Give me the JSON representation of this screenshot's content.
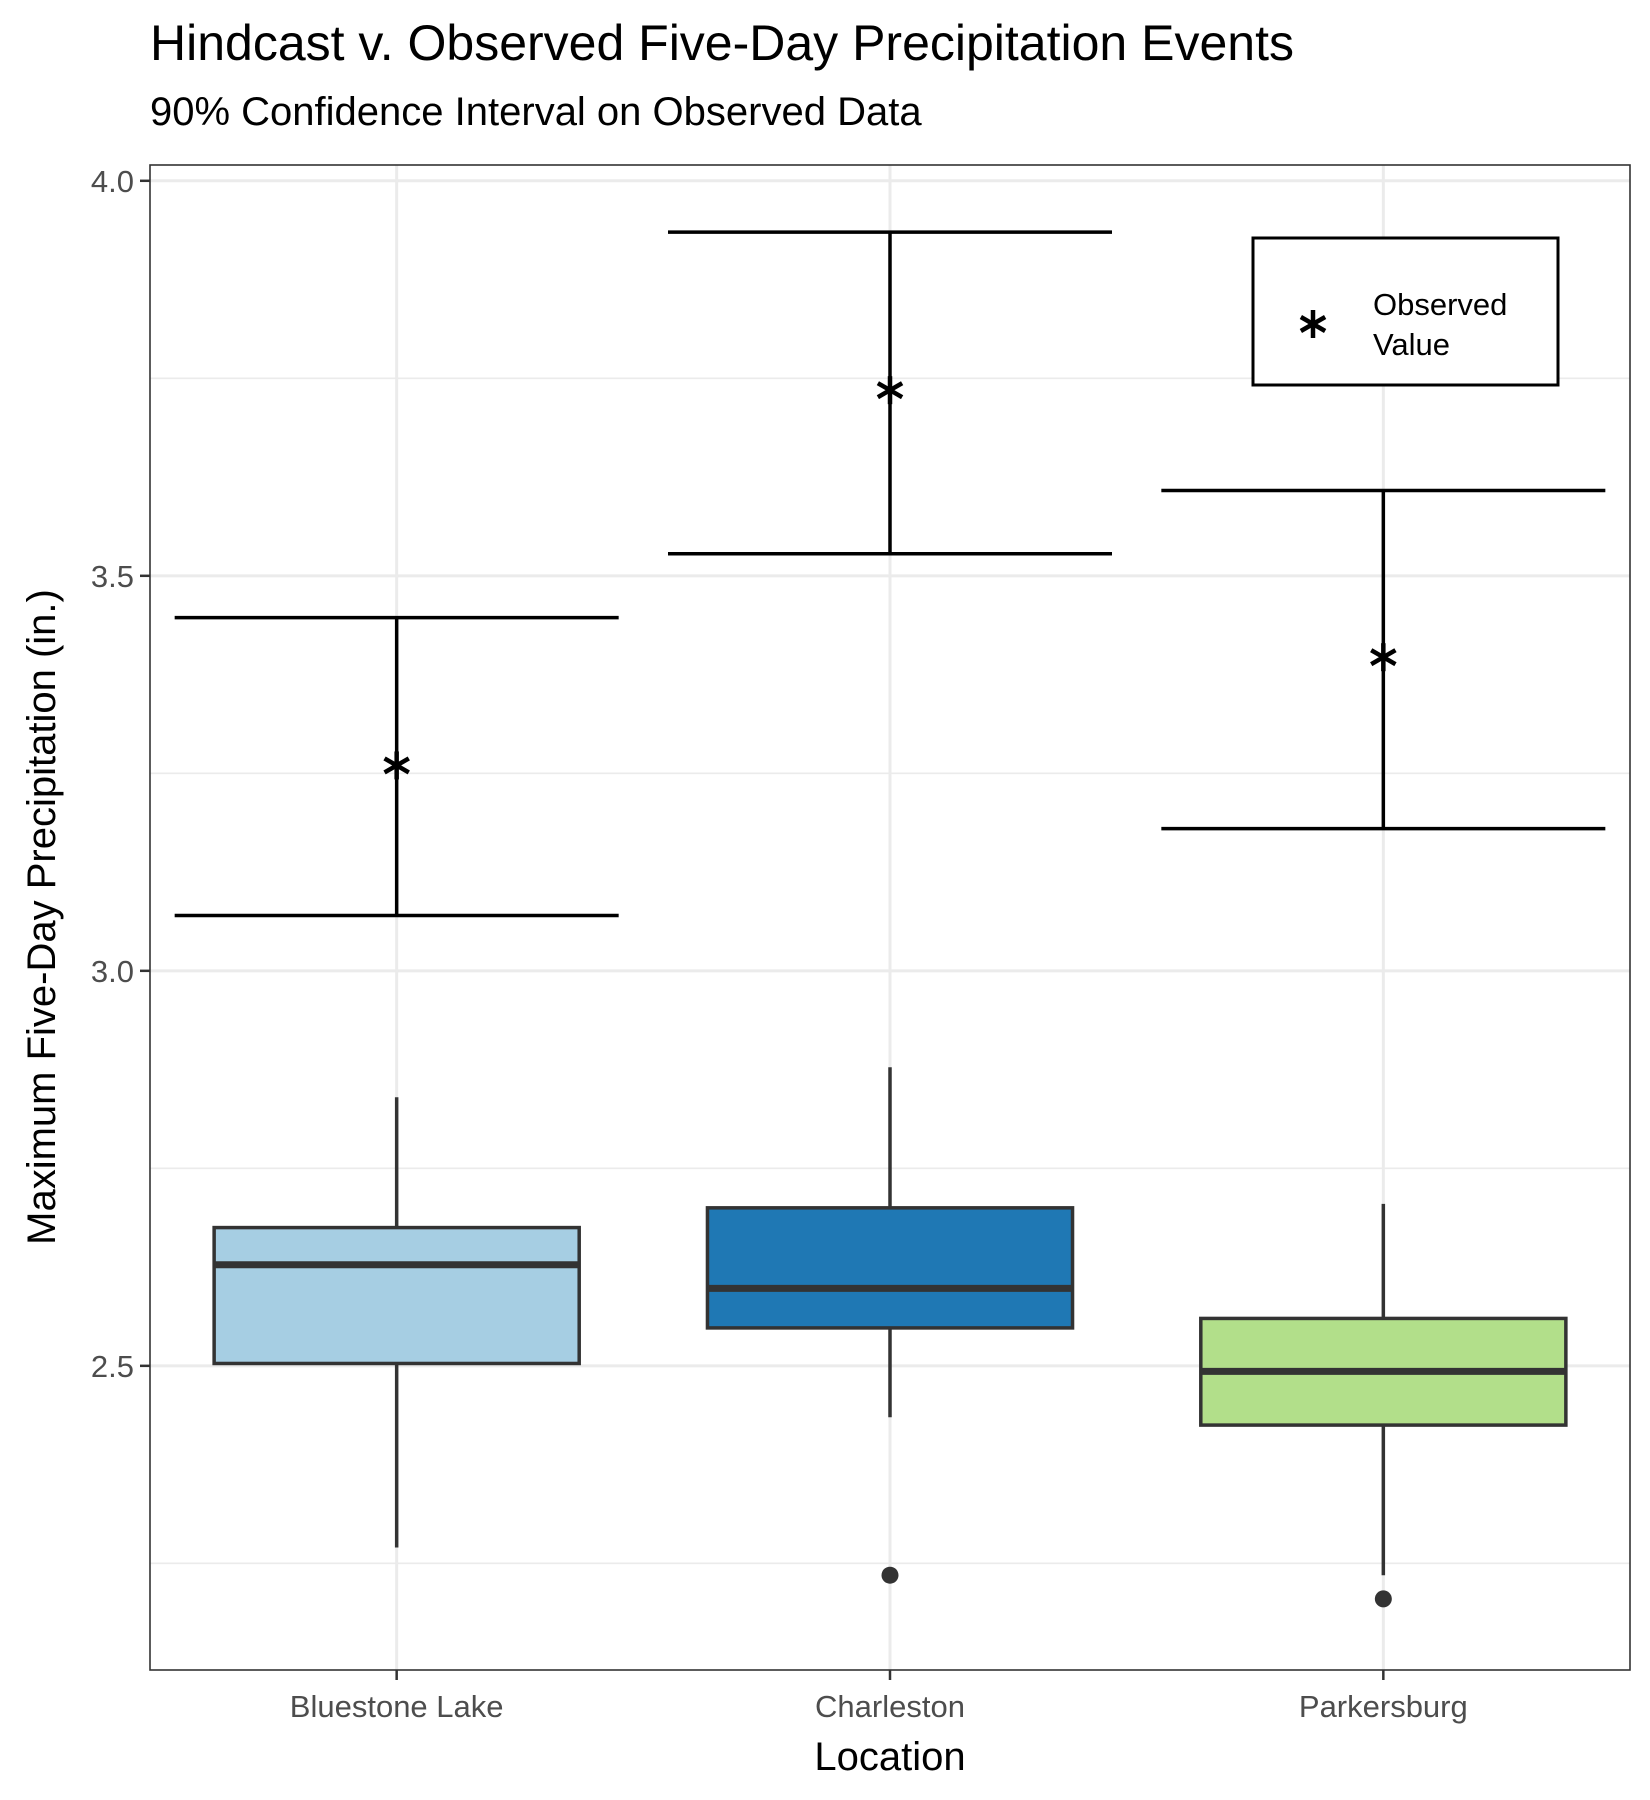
{
  "chart_data": {
    "type": "box",
    "title": "Hindcast v. Observed Five-Day Precipitation Events",
    "subtitle": "90% Confidence Interval on Observed Data",
    "xlabel": "Location",
    "ylabel": "Maximum Five-Day Precipitation (in.)",
    "categories": [
      "Bluestone Lake",
      "Charleston",
      "Parkersburg"
    ],
    "ylim": [
      2.115,
      4.02
    ],
    "yticks": [
      "2.5",
      "3.0",
      "3.5",
      "4.0"
    ],
    "ytick_values": [
      2.5,
      3.0,
      3.5,
      4.0
    ],
    "ygrid_minor": [
      2.25,
      2.75,
      3.25,
      3.75
    ],
    "grid": true,
    "boxes": [
      {
        "category": "Bluestone Lake",
        "whisker_low": 2.27,
        "q1": 2.503,
        "median": 2.628,
        "q3": 2.675,
        "whisker_high": 2.84,
        "outliers": [],
        "fill": "#A6CEE3"
      },
      {
        "category": "Charleston",
        "whisker_low": 2.435,
        "q1": 2.548,
        "median": 2.598,
        "q3": 2.7,
        "whisker_high": 2.878,
        "outliers": [
          2.235
        ],
        "fill": "#1F78B4"
      },
      {
        "category": "Parkersburg",
        "whisker_low": 2.235,
        "q1": 2.425,
        "median": 2.493,
        "q3": 2.56,
        "whisker_high": 2.705,
        "outliers": [
          2.205
        ],
        "fill": "#B2DF8A"
      }
    ],
    "observed": [
      {
        "category": "Bluestone Lake",
        "value": 3.26,
        "ci_low": 3.07,
        "ci_high": 3.447
      },
      {
        "category": "Charleston",
        "value": 3.735,
        "ci_low": 3.528,
        "ci_high": 3.935
      },
      {
        "category": "Parkersburg",
        "value": 3.397,
        "ci_low": 3.18,
        "ci_high": 3.608
      }
    ],
    "legend": {
      "label_line1": "Observed",
      "label_line2": "Value",
      "position": "top-right"
    },
    "colors": {
      "box_outline": "#333333",
      "errorbar": "#000000",
      "grid": "#ebebeb",
      "panel_border": "#333333"
    }
  }
}
